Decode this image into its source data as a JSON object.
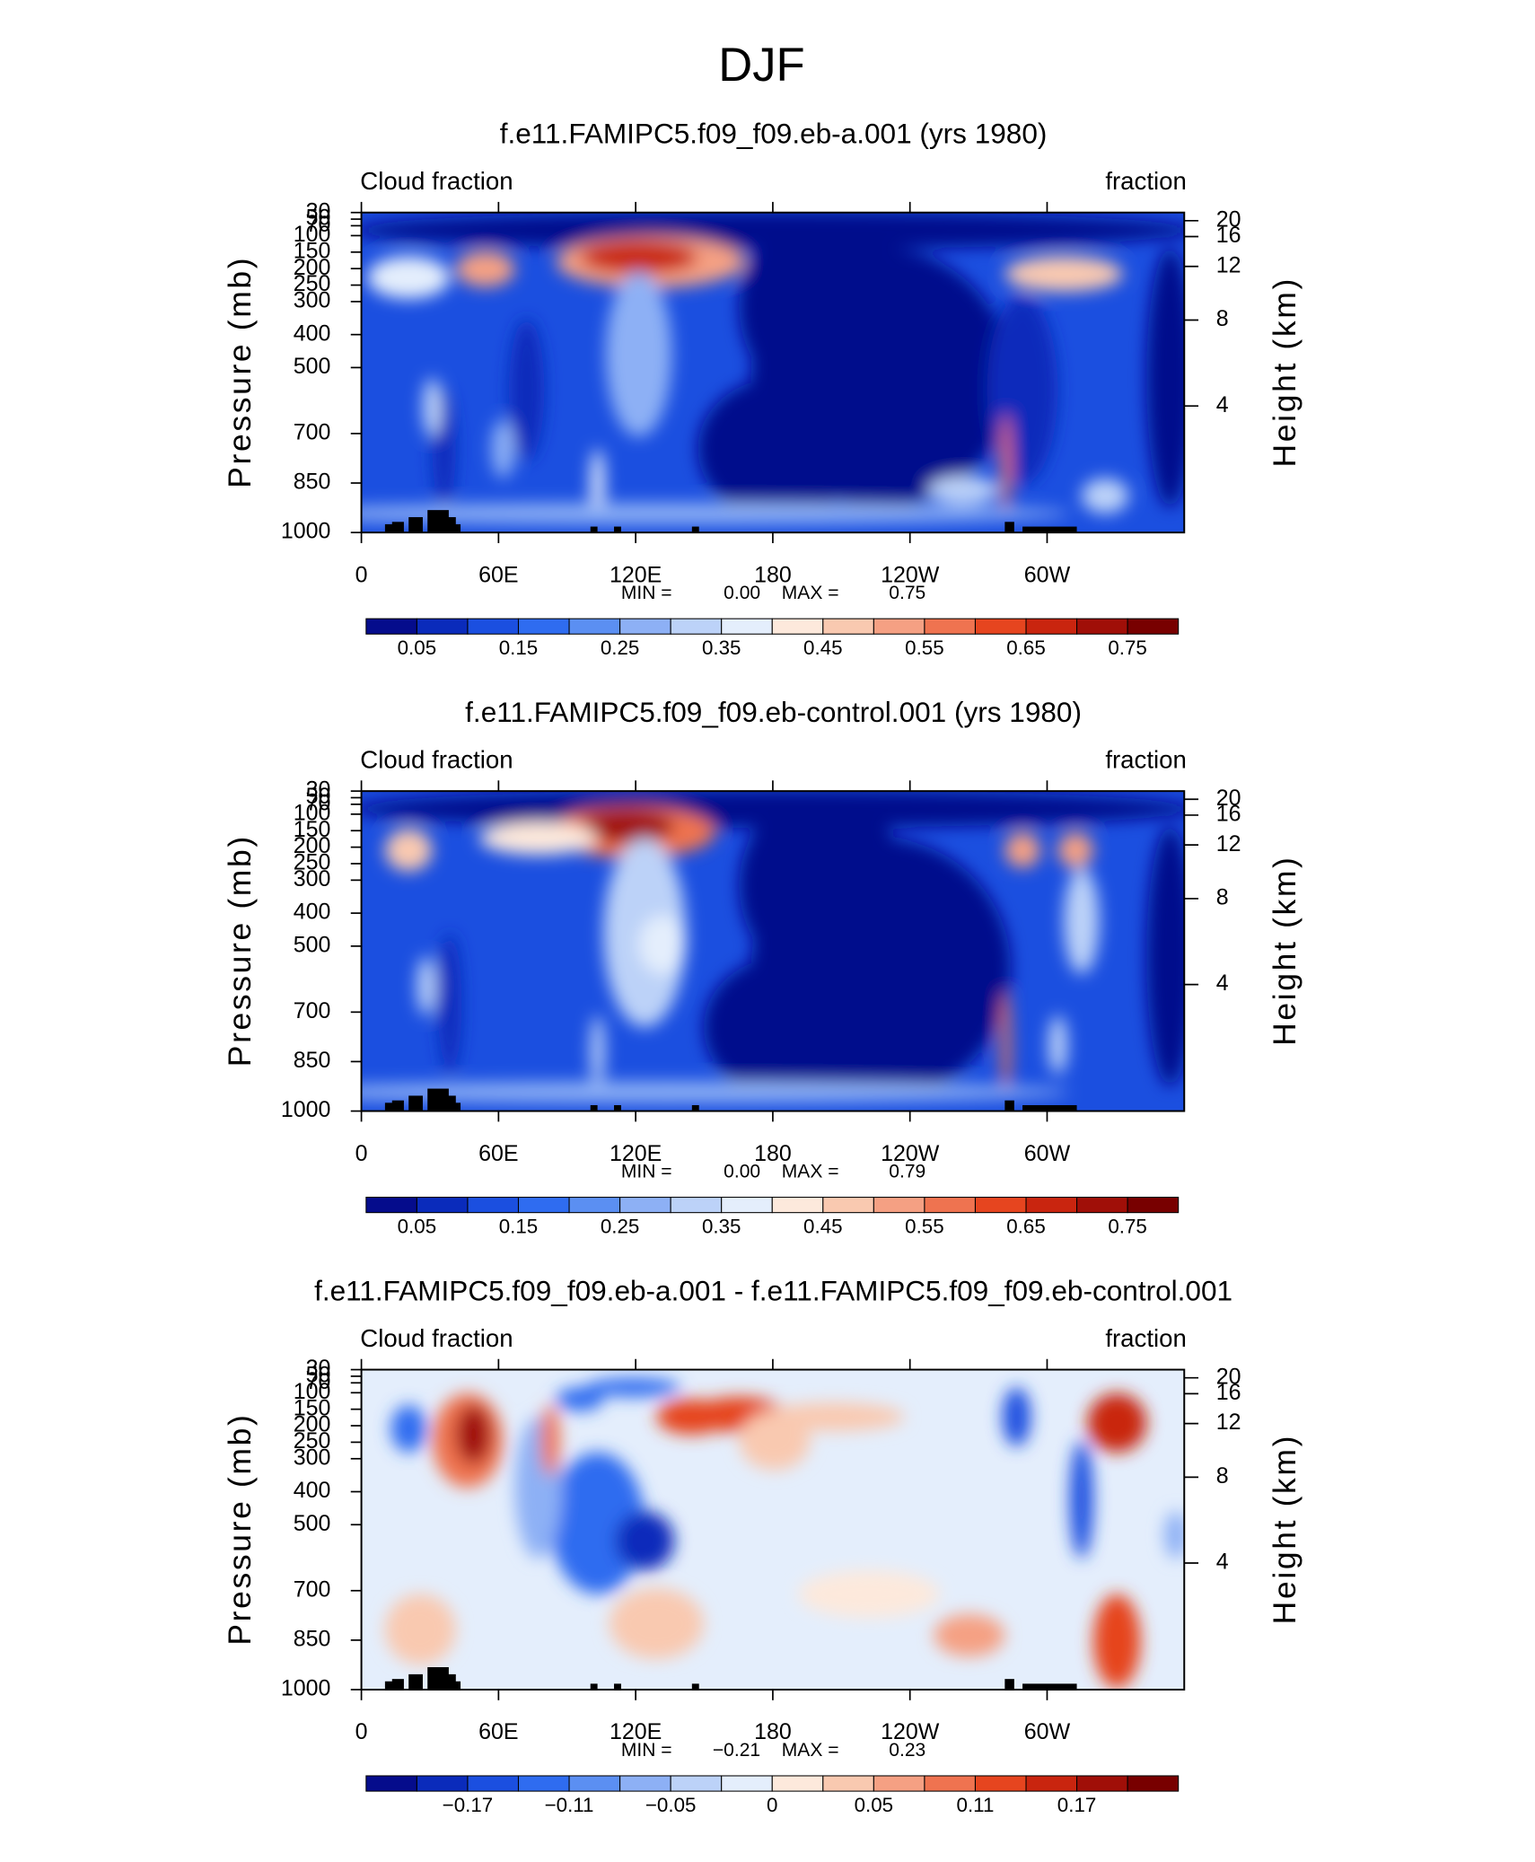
{
  "figure_title": "DJF",
  "chart_data": [
    {
      "type": "contour",
      "title": "f.e11.FAMIPC5.f09_f09.eb-a.001 (yrs 1980)",
      "left_string": "Cloud fraction",
      "right_string": "fraction",
      "ylabel": "Pressure (mb)",
      "y2label": "Height (km)",
      "xlim": [
        0,
        360
      ],
      "xticks": [
        0,
        {
          "value": 60,
          "label": "60E"
        },
        {
          "value": 120,
          "label": "120E"
        },
        180,
        {
          "value": 240,
          "label": "120W"
        },
        {
          "value": 300,
          "label": "60W"
        }
      ],
      "ylim": [
        1000,
        30
      ],
      "yticks": [
        30,
        50,
        70,
        100,
        150,
        200,
        250,
        300,
        400,
        500,
        700,
        850,
        1000
      ],
      "y2ticks": [
        4,
        8,
        12,
        16,
        20
      ],
      "min_caption": "MIN =",
      "min": {
        "value": 0,
        "label": "0.00"
      },
      "max_caption": "MAX =",
      "max": {
        "value": 0.75,
        "label": "0.75"
      },
      "colorbar": {
        "levels": [
          0.05,
          0.1,
          0.15,
          0.2,
          0.25,
          0.3,
          0.35,
          0.4,
          0.45,
          0.5,
          0.55,
          0.6,
          0.65,
          0.7,
          0.75
        ],
        "ticks": [
          0.05,
          0.15,
          0.25,
          0.35,
          0.45,
          0.55,
          0.65,
          0.75
        ],
        "colors": [
          "#050c8c",
          "#0a2bbb",
          "#1b4fe0",
          "#2f6cf0",
          "#5b8ff2",
          "#8db0f5",
          "#bcd2f8",
          "#e4eefc",
          "#fde9dc",
          "#f9c9b0",
          "#f5a083",
          "#ef7350",
          "#e6451f",
          "#c9250f",
          "#a00f08",
          "#780000"
        ]
      }
    },
    {
      "type": "contour",
      "title": "f.e11.FAMIPC5.f09_f09.eb-control.001 (yrs 1980)",
      "left_string": "Cloud fraction",
      "right_string": "fraction",
      "ylabel": "Pressure (mb)",
      "y2label": "Height (km)",
      "xlim": [
        0,
        360
      ],
      "xticks": [
        0,
        {
          "value": 60,
          "label": "60E"
        },
        {
          "value": 120,
          "label": "120E"
        },
        180,
        {
          "value": 240,
          "label": "120W"
        },
        {
          "value": 300,
          "label": "60W"
        }
      ],
      "ylim": [
        1000,
        30
      ],
      "yticks": [
        30,
        50,
        70,
        100,
        150,
        200,
        250,
        300,
        400,
        500,
        700,
        850,
        1000
      ],
      "y2ticks": [
        4,
        8,
        12,
        16,
        20
      ],
      "min_caption": "MIN =",
      "min": {
        "value": 0,
        "label": "0.00"
      },
      "max_caption": "MAX =",
      "max": {
        "value": 0.79,
        "label": "0.79"
      },
      "colorbar": {
        "levels": [
          0.05,
          0.1,
          0.15,
          0.2,
          0.25,
          0.3,
          0.35,
          0.4,
          0.45,
          0.5,
          0.55,
          0.6,
          0.65,
          0.7,
          0.75
        ],
        "ticks": [
          0.05,
          0.15,
          0.25,
          0.35,
          0.45,
          0.55,
          0.65,
          0.75
        ],
        "colors": [
          "#050c8c",
          "#0a2bbb",
          "#1b4fe0",
          "#2f6cf0",
          "#5b8ff2",
          "#8db0f5",
          "#bcd2f8",
          "#e4eefc",
          "#fde9dc",
          "#f9c9b0",
          "#f5a083",
          "#ef7350",
          "#e6451f",
          "#c9250f",
          "#a00f08",
          "#780000"
        ]
      }
    },
    {
      "type": "contour",
      "title": "f.e11.FAMIPC5.f09_f09.eb-a.001 - f.e11.FAMIPC5.f09_f09.eb-control.001",
      "left_string": "Cloud fraction",
      "right_string": "fraction",
      "ylabel": "Pressure (mb)",
      "y2label": "Height (km)",
      "xlim": [
        0,
        360
      ],
      "xticks": [
        0,
        {
          "value": 60,
          "label": "60E"
        },
        {
          "value": 120,
          "label": "120E"
        },
        180,
        {
          "value": 240,
          "label": "120W"
        },
        {
          "value": 300,
          "label": "60W"
        }
      ],
      "ylim": [
        1000,
        30
      ],
      "yticks": [
        30,
        50,
        70,
        100,
        150,
        200,
        250,
        300,
        400,
        500,
        700,
        850,
        1000
      ],
      "y2ticks": [
        4,
        8,
        12,
        16,
        20
      ],
      "min_caption": "MIN =",
      "min": {
        "value": -0.21,
        "label": "−0.21"
      },
      "max_caption": "MAX =",
      "max": {
        "value": 0.23,
        "label": "0.23"
      },
      "colorbar": {
        "levels": [
          -0.2,
          -0.17,
          -0.14,
          -0.11,
          -0.08,
          -0.05,
          -0.02,
          0,
          0.02,
          0.05,
          0.08,
          0.11,
          0.14,
          0.17,
          0.2
        ],
        "ticks": [
          {
            "value": -0.17,
            "label": "−0.17"
          },
          {
            "value": -0.11,
            "label": "−0.11"
          },
          {
            "value": -0.05,
            "label": "−0.05"
          },
          0,
          0.05,
          0.11,
          0.17
        ],
        "colors": [
          "#050c8c",
          "#0a2bbb",
          "#1b4fe0",
          "#2f6cf0",
          "#5b8ff2",
          "#8db0f5",
          "#bcd2f8",
          "#e4eefc",
          "#fde9dc",
          "#f9c9b0",
          "#f5a083",
          "#ef7350",
          "#e6451f",
          "#c9250f",
          "#a00f08",
          "#780000"
        ]
      }
    }
  ]
}
